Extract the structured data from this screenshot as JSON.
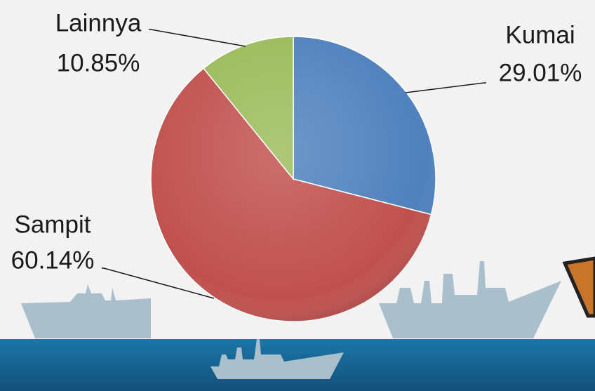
{
  "chart_data": {
    "type": "pie",
    "categories": [
      "Kumai",
      "Sampit",
      "Lainnya"
    ],
    "values": [
      29.01,
      60.14,
      10.85
    ],
    "value_labels": [
      "29.01%",
      "60.14%",
      "10.85%"
    ],
    "colors": [
      "#4f81bd",
      "#c0504d",
      "#9bbb59"
    ]
  }
}
